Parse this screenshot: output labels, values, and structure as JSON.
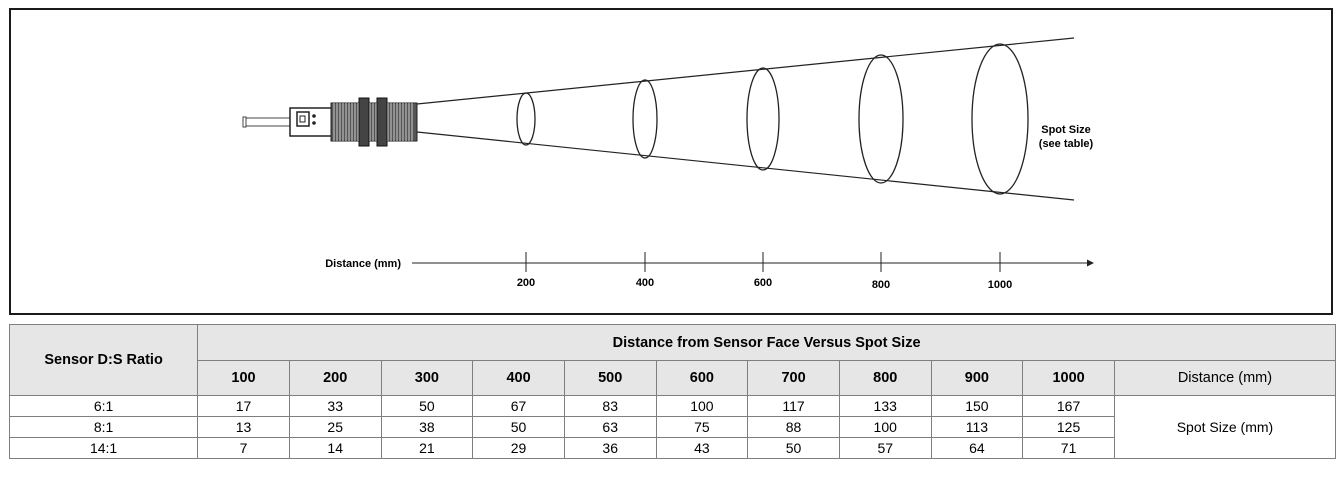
{
  "diagram": {
    "spot_label_line1": "Spot Size",
    "spot_label_line2": "(see table)",
    "distance_label": "Distance (mm)",
    "ticks": [
      "200",
      "400",
      "600",
      "800",
      "1000"
    ]
  },
  "table": {
    "ratio_header": "Sensor D:S Ratio",
    "group_header": "Distance from Sensor Face Versus Spot Size",
    "distances": [
      "100",
      "200",
      "300",
      "400",
      "500",
      "600",
      "700",
      "800",
      "900",
      "1000"
    ],
    "distance_unit": "Distance (mm)",
    "spot_unit": "Spot Size (mm)",
    "rows": [
      {
        "ratio": "6:1",
        "values": [
          "17",
          "33",
          "50",
          "67",
          "83",
          "100",
          "117",
          "133",
          "150",
          "167"
        ]
      },
      {
        "ratio": "8:1",
        "values": [
          "13",
          "25",
          "38",
          "50",
          "63",
          "75",
          "88",
          "100",
          "113",
          "125"
        ]
      },
      {
        "ratio": "14:1",
        "values": [
          "7",
          "14",
          "21",
          "29",
          "36",
          "43",
          "50",
          "57",
          "64",
          "71"
        ]
      }
    ]
  }
}
